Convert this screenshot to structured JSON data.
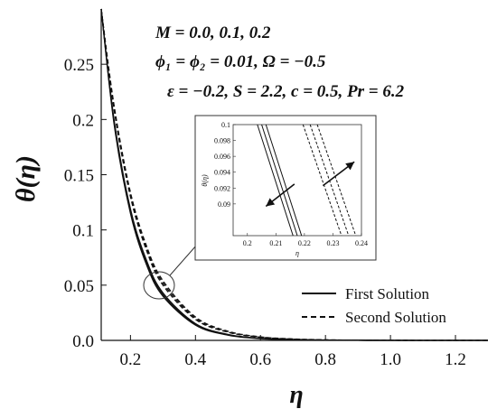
{
  "chart_data": {
    "type": "line",
    "title": "",
    "xlabel": "η",
    "ylabel": "θ(η)",
    "xlim": [
      0.11,
      1.3
    ],
    "ylim": [
      0,
      0.3
    ],
    "x_ticks": [
      0.2,
      0.4,
      0.6,
      0.8,
      1.0,
      1.2
    ],
    "x_tick_labels": [
      "0.2",
      "0.4",
      "0.6",
      "0.8",
      "1.0",
      "1.2"
    ],
    "y_ticks": [
      0,
      0.05,
      0.1,
      0.15,
      0.2,
      0.25
    ],
    "y_tick_labels": [
      "0.0",
      "0.05",
      "0.1",
      "0.15",
      "0.2",
      "0.25"
    ],
    "grid": false,
    "legend_position": "bottom-right",
    "annotations": [
      "M = 0.0, 0.1, 0.2",
      "ϕ₁ = ϕ₂ = 0.01, Ω = −0.5",
      "ε = −0.2, S = 2.2, c = 0.5, Pr = 6.2"
    ],
    "series": [
      {
        "name": "First Solution",
        "style": "solid",
        "curves": [
          {
            "x": [
              0.11,
              0.15,
              0.2,
              0.25,
              0.3,
              0.4,
              0.5,
              0.6,
              0.7,
              0.8,
              0.9,
              1.0,
              1.1,
              1.2,
              1.3
            ],
            "y": [
              0.3,
              0.195,
              0.115,
              0.068,
              0.04,
              0.0138,
              0.0047,
              0.0016,
              0.0006,
              0.0002,
              0.0001,
              0,
              0,
              0,
              0
            ]
          },
          {
            "x": [
              0.11,
              0.15,
              0.2,
              0.25,
              0.3,
              0.4,
              0.5,
              0.6,
              0.7,
              0.8,
              0.9,
              1.0,
              1.1,
              1.2,
              1.3
            ],
            "y": [
              0.3,
              0.197,
              0.117,
              0.07,
              0.0415,
              0.0145,
              0.0051,
              0.0018,
              0.0006,
              0.0002,
              0.0001,
              0,
              0,
              0,
              0
            ]
          },
          {
            "x": [
              0.11,
              0.15,
              0.2,
              0.25,
              0.3,
              0.4,
              0.5,
              0.6,
              0.7,
              0.8,
              0.9,
              1.0,
              1.1,
              1.2,
              1.3
            ],
            "y": [
              0.3,
              0.199,
              0.119,
              0.072,
              0.043,
              0.0152,
              0.0054,
              0.0019,
              0.0007,
              0.0002,
              0.0001,
              0,
              0,
              0,
              0
            ]
          }
        ]
      },
      {
        "name": "Second Solution",
        "style": "dashed",
        "curves": [
          {
            "x": [
              0.11,
              0.15,
              0.2,
              0.25,
              0.3,
              0.4,
              0.5,
              0.6,
              0.7,
              0.8,
              0.9,
              1.0,
              1.1,
              1.2,
              1.3
            ],
            "y": [
              0.3,
              0.208,
              0.13,
              0.081,
              0.05,
              0.019,
              0.0074,
              0.0029,
              0.0011,
              0.0004,
              0.0002,
              0.0001,
              0,
              0,
              0
            ]
          },
          {
            "x": [
              0.11,
              0.15,
              0.2,
              0.25,
              0.3,
              0.4,
              0.5,
              0.6,
              0.7,
              0.8,
              0.9,
              1.0,
              1.1,
              1.2,
              1.3
            ],
            "y": [
              0.3,
              0.21,
              0.132,
              0.083,
              0.052,
              0.02,
              0.0078,
              0.003,
              0.0012,
              0.0005,
              0.0002,
              0.0001,
              0,
              0,
              0
            ]
          },
          {
            "x": [
              0.11,
              0.15,
              0.2,
              0.25,
              0.3,
              0.4,
              0.5,
              0.6,
              0.7,
              0.8,
              0.9,
              1.0,
              1.1,
              1.2,
              1.3
            ],
            "y": [
              0.3,
              0.212,
              0.134,
              0.085,
              0.054,
              0.0212,
              0.0083,
              0.0032,
              0.0013,
              0.0005,
              0.0002,
              0.0001,
              0,
              0,
              0
            ]
          }
        ]
      }
    ],
    "inset": {
      "xlabel": "η",
      "ylabel": "θ(η)",
      "xlim": [
        0.195,
        0.24
      ],
      "ylim": [
        0.086,
        0.1
      ],
      "x_ticks": [
        0.2,
        0.21,
        0.22,
        0.23,
        0.24
      ],
      "x_tick_labels": [
        "0.2",
        "0.21",
        "0.22",
        "0.23",
        "0.24"
      ],
      "y_ticks": [
        0.09,
        0.092,
        0.094,
        0.096,
        0.098,
        0.1
      ],
      "y_tick_labels": [
        "0.09",
        "0.092",
        "0.094",
        "0.096",
        "0.098",
        "0.1"
      ],
      "solid_lines": [
        {
          "x": [
            0.2035,
            0.216
          ],
          "y": [
            0.1,
            0.086
          ]
        },
        {
          "x": [
            0.205,
            0.2175
          ],
          "y": [
            0.1,
            0.086
          ]
        },
        {
          "x": [
            0.2065,
            0.219
          ],
          "y": [
            0.1,
            0.086
          ]
        }
      ],
      "dashed_lines": [
        {
          "x": [
            0.2195,
            0.233
          ],
          "y": [
            0.1,
            0.086
          ]
        },
        {
          "x": [
            0.222,
            0.2355
          ],
          "y": [
            0.1,
            0.086
          ]
        },
        {
          "x": [
            0.2245,
            0.238
          ],
          "y": [
            0.1,
            0.086
          ]
        }
      ],
      "arrows": [
        {
          "from": [
            0.2165,
            0.0925
          ],
          "to": [
            0.2065,
            0.0897
          ]
        },
        {
          "from": [
            0.2265,
            0.0923
          ],
          "to": [
            0.2375,
            0.0953
          ]
        }
      ]
    }
  }
}
